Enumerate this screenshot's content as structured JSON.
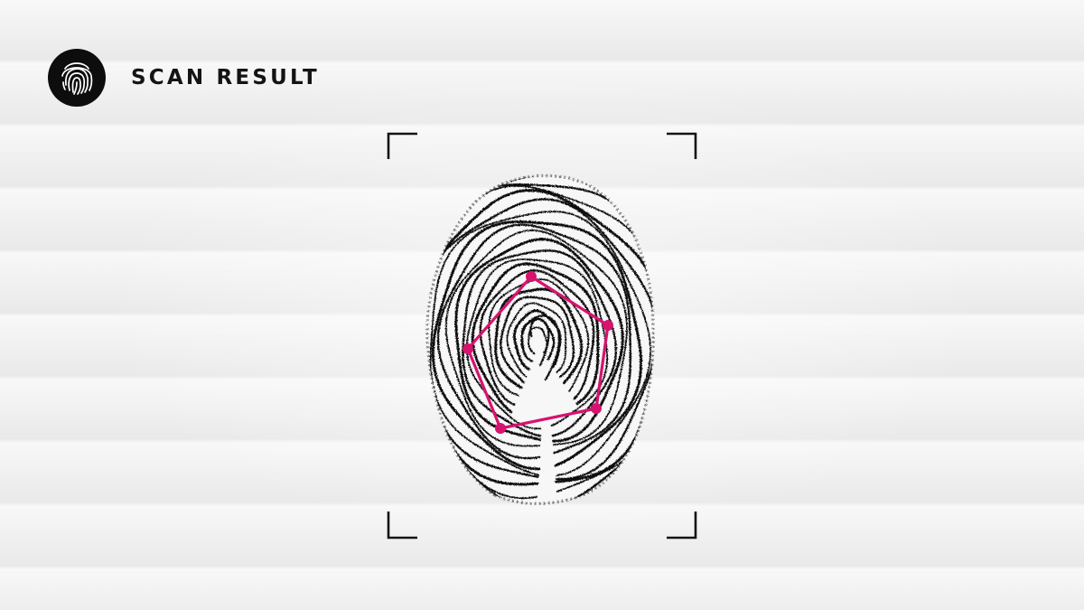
{
  "header": {
    "title": "SCAN RESULT",
    "logo_icon": "fingerprint-icon"
  },
  "scan": {
    "frame_icon": "scan-frame-corners",
    "print_icon": "fingerprint-icon",
    "overlay_icon": "minutiae-pentagon-overlay",
    "frame_color": "#141414",
    "overlay_color": "#d6136f"
  }
}
